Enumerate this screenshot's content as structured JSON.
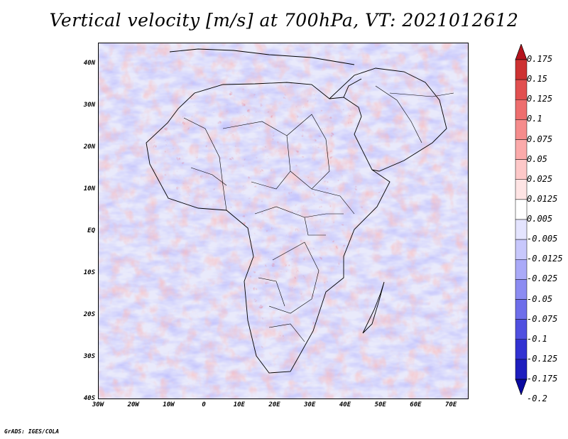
{
  "title": "Vertical velocity [m/s] at 700hPa, VT: 2021012612",
  "footer": "GrADS: IGES/COLA",
  "map": {
    "lon_range": [
      -30,
      75
    ],
    "lat_range": [
      -40,
      45
    ],
    "lat_ticks": [
      {
        "value": 40,
        "label": "40N"
      },
      {
        "value": 30,
        "label": "30N"
      },
      {
        "value": 20,
        "label": "20N"
      },
      {
        "value": 10,
        "label": "10N"
      },
      {
        "value": 0,
        "label": "EQ"
      },
      {
        "value": -10,
        "label": "10S"
      },
      {
        "value": -20,
        "label": "20S"
      },
      {
        "value": -30,
        "label": "30S"
      },
      {
        "value": -40,
        "label": "40S"
      }
    ],
    "lon_ticks": [
      {
        "value": -30,
        "label": "30W"
      },
      {
        "value": -20,
        "label": "20W"
      },
      {
        "value": -10,
        "label": "10W"
      },
      {
        "value": 0,
        "label": "0"
      },
      {
        "value": 10,
        "label": "10E"
      },
      {
        "value": 20,
        "label": "20E"
      },
      {
        "value": 30,
        "label": "30E"
      },
      {
        "value": 40,
        "label": "40E"
      },
      {
        "value": 50,
        "label": "50E"
      },
      {
        "value": 60,
        "label": "60E"
      },
      {
        "value": 70,
        "label": "70E"
      }
    ]
  },
  "colorbar": {
    "labels": [
      "0.175",
      "0.15",
      "0.125",
      "0.1",
      "0.075",
      "0.05",
      "0.025",
      "0.0125",
      "0.005",
      "-0.005",
      "-0.0125",
      "-0.025",
      "-0.05",
      "-0.075",
      "-0.1",
      "-0.125",
      "-0.175",
      "-0.2"
    ],
    "colors": [
      "#b4141e",
      "#cd3232",
      "#e15050",
      "#ee6e6e",
      "#f58c8c",
      "#fbaaaa",
      "#fdc8c8",
      "#fee4e4",
      "#ffffff",
      "#e4e4fe",
      "#c8c8fc",
      "#aaaaf8",
      "#8c8cf2",
      "#6e6eea",
      "#5050e0",
      "#3232d2",
      "#1e1ebe",
      "#0a0aa0"
    ]
  }
}
